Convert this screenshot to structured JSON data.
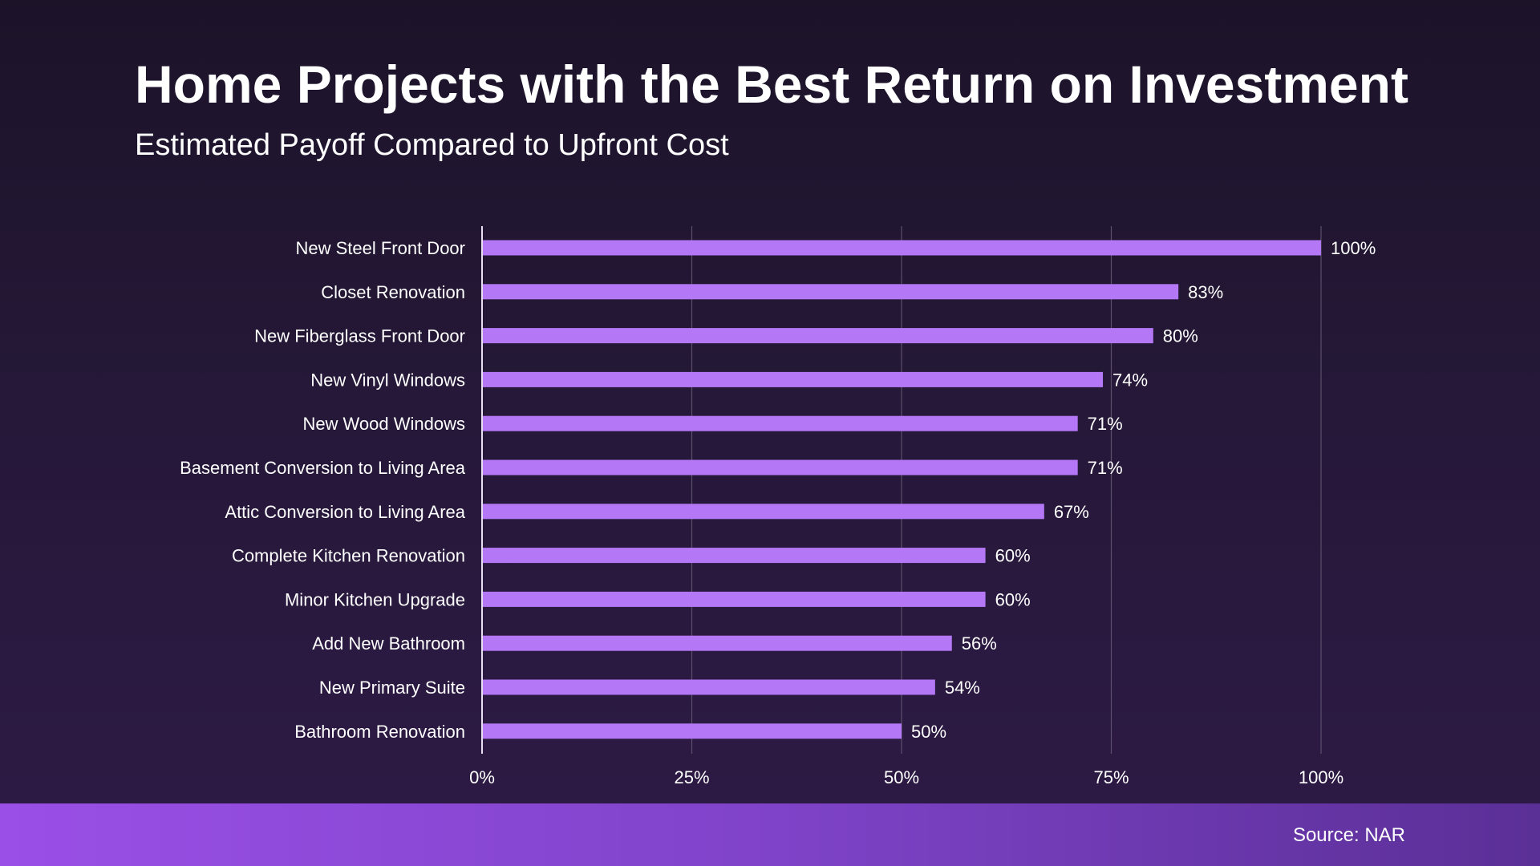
{
  "header": {
    "title": "Home Projects with the Best Return on Investment",
    "subtitle": "Estimated Payoff Compared to Upfront Cost"
  },
  "footer": {
    "source": "Source: NAR"
  },
  "colors": {
    "bar": "#b478f7",
    "gridline": "#5c4f6b",
    "axis": "#e8e0f2",
    "text": "#ffffff"
  },
  "chart_data": {
    "type": "bar",
    "orientation": "horizontal",
    "categories": [
      "New Steel Front Door",
      "Closet Renovation",
      "New Fiberglass Front Door",
      "New Vinyl Windows",
      "New Wood Windows",
      "Basement Conversion to Living Area",
      "Attic Conversion to Living Area",
      "Complete Kitchen Renovation",
      "Minor Kitchen Upgrade",
      "Add New Bathroom",
      "New Primary Suite",
      "Bathroom Renovation"
    ],
    "values": [
      100,
      83,
      80,
      74,
      71,
      71,
      67,
      60,
      60,
      56,
      54,
      50
    ],
    "value_labels": [
      "100%",
      "83%",
      "80%",
      "74%",
      "71%",
      "71%",
      "67%",
      "60%",
      "60%",
      "56%",
      "54%",
      "50%"
    ],
    "xlim": [
      0,
      100
    ],
    "xticks": [
      0,
      25,
      50,
      75,
      100
    ],
    "xtick_labels": [
      "0%",
      "25%",
      "50%",
      "75%",
      "100%"
    ],
    "grid": "vertical",
    "legend": "none"
  }
}
